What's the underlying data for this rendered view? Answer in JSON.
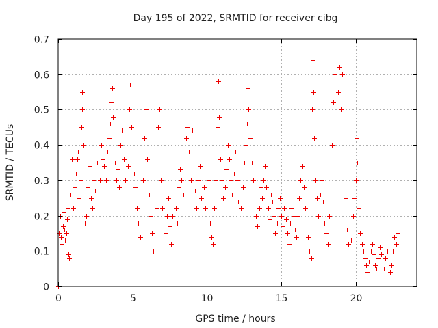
{
  "chart_data": {
    "type": "scatter",
    "title": "Day 195 of 2022, SRMTID for receiver cibg",
    "xlabel": "GPS time / hours",
    "ylabel": "SRMTID / TECUs",
    "xlim": [
      0,
      24.1
    ],
    "ylim": [
      0,
      0.7
    ],
    "grid": true,
    "x_ticks": [
      0,
      5,
      10,
      15,
      20
    ],
    "y_ticks": [
      0,
      0.1,
      0.2,
      0.3,
      0.4,
      0.5,
      0.6,
      0.7
    ],
    "x_tick_labels": [
      "0",
      "5",
      "10",
      "15",
      "20"
    ],
    "y_tick_labels": [
      "0",
      "0.1",
      "0.2",
      "0.3",
      "0.4",
      "0.5",
      "0.6",
      "0.7"
    ],
    "marker": "+",
    "series": [
      {
        "name": "SRMTID",
        "color": "#ee0000",
        "points": [
          [
            0.02,
            0.0
          ],
          [
            0.05,
            0.15
          ],
          [
            0.1,
            0.18
          ],
          [
            0.15,
            0.2
          ],
          [
            0.2,
            0.14
          ],
          [
            0.25,
            0.12
          ],
          [
            0.3,
            0.17
          ],
          [
            0.35,
            0.21
          ],
          [
            0.4,
            0.16
          ],
          [
            0.45,
            0.13
          ],
          [
            0.5,
            0.1
          ],
          [
            0.55,
            0.15
          ],
          [
            0.6,
            0.19
          ],
          [
            0.65,
            0.22
          ],
          [
            0.7,
            0.09
          ],
          [
            0.75,
            0.08
          ],
          [
            0.8,
            0.13
          ],
          [
            0.85,
            0.26
          ],
          [
            0.9,
            0.36
          ],
          [
            1.0,
            0.22
          ],
          [
            1.1,
            0.28
          ],
          [
            1.2,
            0.32
          ],
          [
            1.3,
            0.36
          ],
          [
            1.35,
            0.38
          ],
          [
            1.4,
            0.25
          ],
          [
            1.5,
            0.3
          ],
          [
            1.55,
            0.45
          ],
          [
            1.6,
            0.55
          ],
          [
            1.62,
            0.5
          ],
          [
            1.7,
            0.4
          ],
          [
            1.8,
            0.18
          ],
          [
            1.9,
            0.2
          ],
          [
            2.0,
            0.28
          ],
          [
            2.1,
            0.34
          ],
          [
            2.2,
            0.25
          ],
          [
            2.3,
            0.22
          ],
          [
            2.4,
            0.3
          ],
          [
            2.5,
            0.27
          ],
          [
            2.6,
            0.35
          ],
          [
            2.7,
            0.24
          ],
          [
            2.8,
            0.3
          ],
          [
            2.9,
            0.4
          ],
          [
            3.0,
            0.36
          ],
          [
            3.1,
            0.34
          ],
          [
            3.2,
            0.3
          ],
          [
            3.3,
            0.38
          ],
          [
            3.4,
            0.42
          ],
          [
            3.5,
            0.46
          ],
          [
            3.6,
            0.52
          ],
          [
            3.65,
            0.56
          ],
          [
            3.7,
            0.48
          ],
          [
            3.8,
            0.35
          ],
          [
            3.9,
            0.3
          ],
          [
            4.0,
            0.33
          ],
          [
            4.1,
            0.28
          ],
          [
            4.2,
            0.4
          ],
          [
            4.3,
            0.44
          ],
          [
            4.4,
            0.36
          ],
          [
            4.5,
            0.3
          ],
          [
            4.6,
            0.24
          ],
          [
            4.7,
            0.34
          ],
          [
            4.8,
            0.5
          ],
          [
            4.85,
            0.57
          ],
          [
            4.9,
            0.45
          ],
          [
            5.0,
            0.38
          ],
          [
            5.1,
            0.32
          ],
          [
            5.2,
            0.28
          ],
          [
            5.3,
            0.22
          ],
          [
            5.4,
            0.18
          ],
          [
            5.5,
            0.14
          ],
          [
            5.6,
            0.26
          ],
          [
            5.7,
            0.3
          ],
          [
            5.8,
            0.42
          ],
          [
            5.9,
            0.5
          ],
          [
            6.0,
            0.36
          ],
          [
            6.1,
            0.26
          ],
          [
            6.2,
            0.2
          ],
          [
            6.3,
            0.15
          ],
          [
            6.4,
            0.1
          ],
          [
            6.5,
            0.18
          ],
          [
            6.6,
            0.22
          ],
          [
            6.7,
            0.45
          ],
          [
            6.8,
            0.5
          ],
          [
            6.9,
            0.3
          ],
          [
            7.0,
            0.22
          ],
          [
            7.1,
            0.18
          ],
          [
            7.2,
            0.15
          ],
          [
            7.3,
            0.2
          ],
          [
            7.4,
            0.25
          ],
          [
            7.5,
            0.17
          ],
          [
            7.6,
            0.12
          ],
          [
            7.7,
            0.2
          ],
          [
            7.8,
            0.26
          ],
          [
            7.9,
            0.22
          ],
          [
            8.0,
            0.18
          ],
          [
            8.1,
            0.28
          ],
          [
            8.2,
            0.33
          ],
          [
            8.3,
            0.3
          ],
          [
            8.4,
            0.26
          ],
          [
            8.5,
            0.35
          ],
          [
            8.6,
            0.42
          ],
          [
            8.7,
            0.45
          ],
          [
            8.8,
            0.38
          ],
          [
            8.9,
            0.3
          ],
          [
            9.0,
            0.44
          ],
          [
            9.1,
            0.35
          ],
          [
            9.2,
            0.27
          ],
          [
            9.3,
            0.22
          ],
          [
            9.4,
            0.3
          ],
          [
            9.5,
            0.34
          ],
          [
            9.6,
            0.25
          ],
          [
            9.7,
            0.32
          ],
          [
            9.8,
            0.28
          ],
          [
            9.9,
            0.22
          ],
          [
            10.0,
            0.26
          ],
          [
            10.1,
            0.3
          ],
          [
            10.2,
            0.18
          ],
          [
            10.3,
            0.14
          ],
          [
            10.4,
            0.12
          ],
          [
            10.5,
            0.22
          ],
          [
            10.6,
            0.3
          ],
          [
            10.7,
            0.45
          ],
          [
            10.75,
            0.58
          ],
          [
            10.8,
            0.48
          ],
          [
            10.9,
            0.36
          ],
          [
            11.0,
            0.3
          ],
          [
            11.1,
            0.25
          ],
          [
            11.2,
            0.28
          ],
          [
            11.3,
            0.33
          ],
          [
            11.4,
            0.4
          ],
          [
            11.5,
            0.36
          ],
          [
            11.6,
            0.3
          ],
          [
            11.7,
            0.26
          ],
          [
            11.8,
            0.32
          ],
          [
            11.9,
            0.38
          ],
          [
            12.0,
            0.3
          ],
          [
            12.1,
            0.24
          ],
          [
            12.2,
            0.18
          ],
          [
            12.3,
            0.22
          ],
          [
            12.4,
            0.28
          ],
          [
            12.5,
            0.35
          ],
          [
            12.6,
            0.4
          ],
          [
            12.7,
            0.46
          ],
          [
            12.75,
            0.56
          ],
          [
            12.8,
            0.5
          ],
          [
            12.9,
            0.42
          ],
          [
            13.0,
            0.35
          ],
          [
            13.1,
            0.3
          ],
          [
            13.2,
            0.24
          ],
          [
            13.3,
            0.2
          ],
          [
            13.4,
            0.17
          ],
          [
            13.5,
            0.22
          ],
          [
            13.6,
            0.28
          ],
          [
            13.7,
            0.25
          ],
          [
            13.8,
            0.3
          ],
          [
            13.9,
            0.34
          ],
          [
            14.0,
            0.28
          ],
          [
            14.1,
            0.22
          ],
          [
            14.2,
            0.19
          ],
          [
            14.3,
            0.26
          ],
          [
            14.4,
            0.24
          ],
          [
            14.5,
            0.2
          ],
          [
            14.6,
            0.15
          ],
          [
            14.7,
            0.18
          ],
          [
            14.8,
            0.22
          ],
          [
            14.9,
            0.25
          ],
          [
            15.0,
            0.2
          ],
          [
            15.1,
            0.17
          ],
          [
            15.2,
            0.22
          ],
          [
            15.3,
            0.19
          ],
          [
            15.4,
            0.15
          ],
          [
            15.5,
            0.12
          ],
          [
            15.6,
            0.18
          ],
          [
            15.7,
            0.22
          ],
          [
            15.8,
            0.2
          ],
          [
            15.9,
            0.16
          ],
          [
            16.0,
            0.14
          ],
          [
            16.1,
            0.2
          ],
          [
            16.2,
            0.25
          ],
          [
            16.3,
            0.3
          ],
          [
            16.4,
            0.34
          ],
          [
            16.5,
            0.28
          ],
          [
            16.6,
            0.22
          ],
          [
            16.7,
            0.18
          ],
          [
            16.8,
            0.14
          ],
          [
            16.9,
            0.1
          ],
          [
            17.0,
            0.08
          ],
          [
            17.05,
            0.5
          ],
          [
            17.1,
            0.64
          ],
          [
            17.15,
            0.55
          ],
          [
            17.2,
            0.42
          ],
          [
            17.3,
            0.3
          ],
          [
            17.4,
            0.25
          ],
          [
            17.5,
            0.2
          ],
          [
            17.6,
            0.26
          ],
          [
            17.7,
            0.3
          ],
          [
            17.8,
            0.24
          ],
          [
            17.9,
            0.18
          ],
          [
            18.0,
            0.15
          ],
          [
            18.1,
            0.12
          ],
          [
            18.2,
            0.2
          ],
          [
            18.3,
            0.26
          ],
          [
            18.4,
            0.4
          ],
          [
            18.5,
            0.52
          ],
          [
            18.6,
            0.6
          ],
          [
            18.7,
            0.65
          ],
          [
            18.8,
            0.55
          ],
          [
            18.9,
            0.62
          ],
          [
            19.0,
            0.5
          ],
          [
            19.1,
            0.6
          ],
          [
            19.2,
            0.38
          ],
          [
            19.3,
            0.25
          ],
          [
            19.4,
            0.16
          ],
          [
            19.5,
            0.12
          ],
          [
            19.6,
            0.1
          ],
          [
            19.7,
            0.13
          ],
          [
            19.8,
            0.2
          ],
          [
            19.9,
            0.25
          ],
          [
            20.0,
            0.3
          ],
          [
            20.05,
            0.42
          ],
          [
            20.1,
            0.35
          ],
          [
            20.2,
            0.22
          ],
          [
            20.3,
            0.15
          ],
          [
            20.4,
            0.12
          ],
          [
            20.5,
            0.1
          ],
          [
            20.6,
            0.08
          ],
          [
            20.7,
            0.06
          ],
          [
            20.8,
            0.04
          ],
          [
            20.9,
            0.07
          ],
          [
            21.0,
            0.1
          ],
          [
            21.1,
            0.12
          ],
          [
            21.2,
            0.09
          ],
          [
            21.3,
            0.06
          ],
          [
            21.4,
            0.05
          ],
          [
            21.5,
            0.08
          ],
          [
            21.6,
            0.11
          ],
          [
            21.7,
            0.09
          ],
          [
            21.8,
            0.07
          ],
          [
            21.9,
            0.05
          ],
          [
            22.0,
            0.08
          ],
          [
            22.1,
            0.1
          ],
          [
            22.2,
            0.07
          ],
          [
            22.3,
            0.04
          ],
          [
            22.4,
            0.06
          ],
          [
            22.5,
            0.1
          ],
          [
            22.6,
            0.14
          ],
          [
            22.7,
            0.12
          ],
          [
            22.8,
            0.15
          ]
        ]
      }
    ]
  }
}
